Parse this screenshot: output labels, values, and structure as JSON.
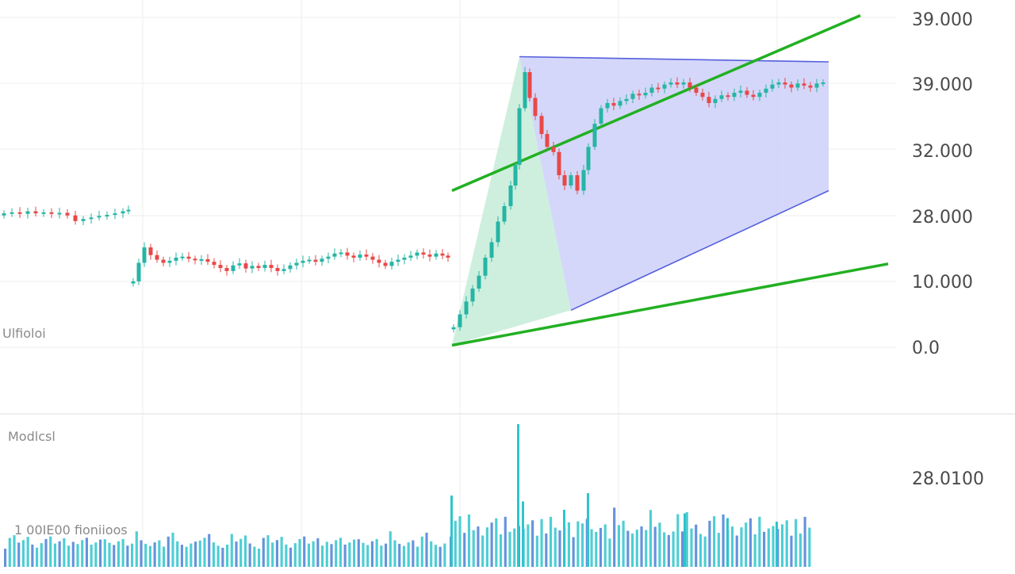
{
  "chart_data": {
    "type": "candlestick",
    "price_axis": {
      "tick_labels": [
        "39.000",
        "39.000",
        "32.000",
        "28.000",
        "10.000",
        "0.0"
      ]
    },
    "volume_axis": {
      "tick_labels": [
        "28.0100"
      ]
    },
    "annotations": {
      "price_left_label": "Ulfioloi",
      "volume_pane_label": "Modlcsl",
      "volume_bottom_label": "1 00IE00 fioniioos"
    },
    "colors": {
      "up": "#26b5a4",
      "down": "#e84848",
      "channel_lines": "#22b022",
      "triangle_line": "#5560dd",
      "triangle_fill": "#c9cdf7",
      "rise_fill": "#c6ecd8",
      "volume_bar_teal": "#2ec5cc",
      "volume_bar_blue": "#4a7fd6",
      "grid": "#eeeeee"
    },
    "drawings": {
      "upper_channel": {
        "from": [
          570,
          430
        ],
        "to": [
          1085,
          770
        ]
      },
      "lower_channel": {
        "from": [
          570,
          130
        ],
        "to": [
          1120,
          288
        ]
      },
      "triangle_top": {
        "from": [
          655,
          690
        ],
        "to": [
          1045,
          680
        ]
      },
      "triangle_bottom": {
        "from": [
          720,
          198
        ],
        "to": [
          1045,
          430
        ]
      },
      "rise_wedge": [
        [
          570,
          130
        ],
        [
          655,
          690
        ],
        [
          720,
          198
        ]
      ]
    },
    "series": [
      {
        "name": "segment_1",
        "points": [
          [
            5,
            386
          ],
          [
            15,
            388
          ],
          [
            25,
            385
          ],
          [
            35,
            390
          ],
          [
            45,
            386
          ],
          [
            55,
            388
          ],
          [
            65,
            385
          ],
          [
            75,
            387
          ],
          [
            85,
            382
          ],
          [
            95,
            371
          ],
          [
            105,
            375
          ],
          [
            115,
            378
          ],
          [
            125,
            381
          ],
          [
            135,
            383
          ],
          [
            145,
            386
          ],
          [
            155,
            390
          ],
          [
            162,
            393
          ]
        ]
      },
      {
        "name": "segment_2",
        "points": [
          [
            168,
            254
          ],
          [
            175,
            290
          ],
          [
            182,
            320
          ],
          [
            190,
            305
          ],
          [
            198,
            296
          ],
          [
            206,
            290
          ],
          [
            214,
            294
          ],
          [
            222,
            300
          ],
          [
            230,
            302
          ],
          [
            238,
            298
          ],
          [
            246,
            295
          ],
          [
            254,
            297
          ],
          [
            262,
            292
          ],
          [
            270,
            286
          ],
          [
            278,
            280
          ],
          [
            286,
            274
          ],
          [
            294,
            285
          ],
          [
            302,
            289
          ],
          [
            310,
            279
          ],
          [
            318,
            284
          ],
          [
            326,
            280
          ],
          [
            334,
            286
          ],
          [
            342,
            280
          ],
          [
            350,
            274
          ],
          [
            358,
            278
          ],
          [
            366,
            285
          ],
          [
            374,
            290
          ],
          [
            382,
            294
          ],
          [
            390,
            296
          ],
          [
            398,
            292
          ],
          [
            406,
            298
          ],
          [
            414,
            302
          ],
          [
            422,
            308
          ],
          [
            430,
            310
          ],
          [
            438,
            304
          ],
          [
            446,
            300
          ],
          [
            454,
            306
          ],
          [
            462,
            302
          ],
          [
            470,
            296
          ],
          [
            478,
            290
          ],
          [
            486,
            284
          ],
          [
            494,
            292
          ],
          [
            502,
            296
          ],
          [
            510,
            300
          ],
          [
            518,
            304
          ],
          [
            526,
            310
          ],
          [
            534,
            306
          ],
          [
            542,
            302
          ],
          [
            550,
            308
          ],
          [
            558,
            304
          ],
          [
            565,
            300
          ]
        ]
      },
      {
        "name": "segment_3",
        "points": [
          [
            572,
            165
          ],
          [
            580,
            190
          ],
          [
            588,
            215
          ],
          [
            596,
            240
          ],
          [
            604,
            265
          ],
          [
            612,
            300
          ],
          [
            620,
            330
          ],
          [
            628,
            370
          ],
          [
            636,
            400
          ],
          [
            644,
            440
          ],
          [
            650,
            480
          ],
          [
            655,
            590
          ],
          [
            662,
            660
          ],
          [
            668,
            610
          ],
          [
            675,
            575
          ],
          [
            683,
            540
          ],
          [
            690,
            515
          ],
          [
            698,
            505
          ],
          [
            705,
            460
          ],
          [
            712,
            440
          ],
          [
            720,
            460
          ],
          [
            728,
            430
          ],
          [
            736,
            470
          ],
          [
            742,
            515
          ],
          [
            750,
            560
          ],
          [
            758,
            590
          ],
          [
            766,
            600
          ],
          [
            774,
            595
          ],
          [
            782,
            604
          ],
          [
            790,
            608
          ],
          [
            798,
            618
          ],
          [
            806,
            615
          ],
          [
            814,
            620
          ],
          [
            822,
            630
          ],
          [
            830,
            628
          ],
          [
            838,
            636
          ],
          [
            846,
            640
          ],
          [
            854,
            636
          ],
          [
            862,
            640
          ],
          [
            870,
            630
          ],
          [
            878,
            620
          ],
          [
            886,
            612
          ],
          [
            894,
            600
          ],
          [
            902,
            608
          ],
          [
            910,
            615
          ],
          [
            918,
            612
          ],
          [
            926,
            620
          ],
          [
            934,
            624
          ],
          [
            942,
            616
          ],
          [
            950,
            612
          ],
          [
            958,
            620
          ],
          [
            966,
            628
          ],
          [
            974,
            636
          ],
          [
            982,
            640
          ],
          [
            990,
            636
          ],
          [
            998,
            630
          ],
          [
            1006,
            638
          ],
          [
            1014,
            634
          ],
          [
            1022,
            630
          ],
          [
            1030,
            638
          ],
          [
            1038,
            640
          ]
        ]
      }
    ],
    "volume": [
      {
        "x_range": [
          5,
          565
        ],
        "count": 98,
        "levels": [
          0.18,
          0.22,
          0.25,
          0.2,
          0.23,
          0.27,
          0.21,
          0.19
        ]
      },
      {
        "x_range": [
          567,
          1025
        ],
        "count": 80,
        "levels": [
          0.3,
          0.35,
          0.4,
          0.28,
          0.45,
          0.33,
          0.38,
          0.31
        ]
      }
    ],
    "volume_spikes": [
      [
        568,
        0.6
      ],
      [
        652,
        1.2
      ],
      [
        658,
        0.55
      ],
      [
        710,
        0.48
      ],
      [
        740,
        0.62
      ],
      [
        862,
        0.45
      ],
      [
        916,
        0.41
      ],
      [
        978,
        0.38
      ]
    ]
  }
}
